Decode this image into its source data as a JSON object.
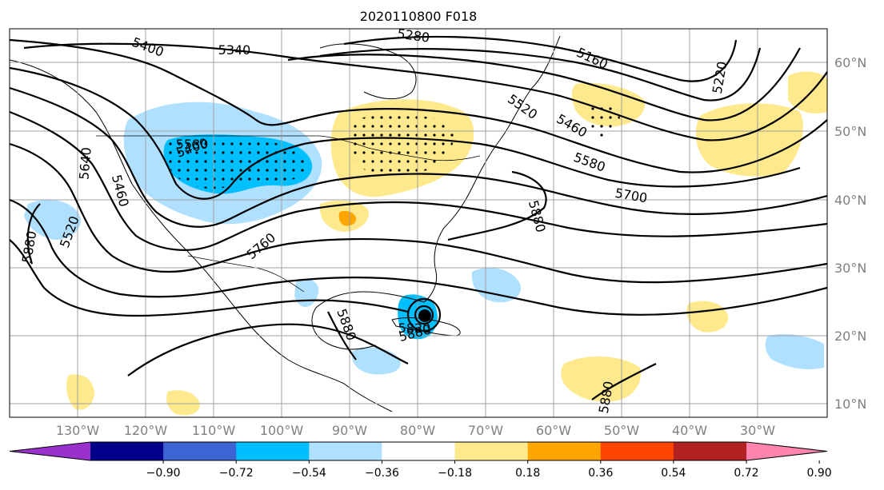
{
  "title": "2020110800 F018",
  "map": {
    "lon_labels": [
      "130°W",
      "120°W",
      "110°W",
      "100°W",
      "90°W",
      "80°W",
      "70°W",
      "60°W",
      "50°W",
      "40°W",
      "30°W"
    ],
    "lat_labels": [
      "60°N",
      "50°N",
      "40°N",
      "30°N",
      "20°N",
      "10°N"
    ],
    "gridlines": true,
    "contour_labels": [
      "5400",
      "5340",
      "5280",
      "5160",
      "5220",
      "5580",
      "5460",
      "5520",
      "5640",
      "5460",
      "5400",
      "5520",
      "5880",
      "5760",
      "5880",
      "5880",
      "5880",
      "5700",
      "5820",
      "5880",
      "5580"
    ],
    "colors": {
      "light_yellow": "#ffe98d",
      "orange": "#ffa500",
      "light_blue": "#b0e0ff",
      "blue": "#00bfff",
      "contour": "#000000",
      "coast": "#000000"
    }
  },
  "colorbar": {
    "labels": [
      "−0.90",
      "−0.72",
      "−0.54",
      "−0.36",
      "−0.18",
      "0.18",
      "0.36",
      "0.54",
      "0.72",
      "0.90"
    ],
    "colors": [
      "#9932cc",
      "#00008b",
      "#3c64d2",
      "#00bfff",
      "#b0e0ff",
      "#ffffff",
      "#ffe98d",
      "#ffa500",
      "#ff4500",
      "#b22222",
      "#ff85b0"
    ]
  }
}
